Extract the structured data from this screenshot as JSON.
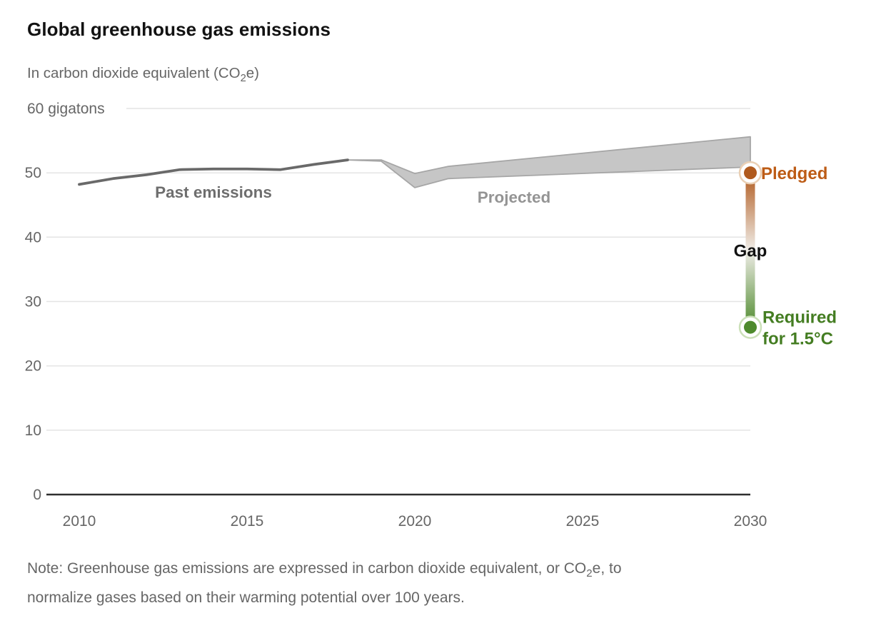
{
  "header": {
    "title": "Global greenhouse gas emissions",
    "subtitle_pre": "In carbon dioxide equivalent (CO",
    "subtitle_sub": "2",
    "subtitle_post": "e)"
  },
  "labels": {
    "past": "Past emissions",
    "projected": "Projected",
    "pledged": "Pledged",
    "gap": "Gap",
    "required_line1": "Required",
    "required_line2": "for 1.5°C"
  },
  "note": {
    "line1_pre": "Note: Greenhouse gas emissions are expressed in carbon dioxide equivalent, or CO",
    "line1_sub": "2",
    "line1_post": "e, to",
    "line2": "normalize gases based on their warming potential over 100 years."
  },
  "colors": {
    "title_text": "#121212",
    "subtitle_text": "#666666",
    "tick_text": "#666666",
    "grid": "#e4e4e4",
    "axis": "#2f2f2f",
    "past_line": "#696969",
    "past_label": "#6e6e6e",
    "band_fill": "#c6c6c6",
    "band_edge": "#a6a6a6",
    "projected_label": "#949494",
    "pledged": "#b05a1e",
    "pledged_text": "#bd5c16",
    "halo_pledged": "#ead0b5",
    "required": "#4e8a2d",
    "required_text": "#447d22",
    "halo_required": "#cbe0b8",
    "gap_text": "#111111",
    "gradient_stops": [
      [
        "0%",
        "#b05a1e"
      ],
      [
        "50%",
        "#f0ede8"
      ],
      [
        "100%",
        "#4e8a2d"
      ]
    ]
  },
  "chart_data": {
    "type": "area",
    "title": "Global greenhouse gas emissions",
    "subtitle": "In carbon dioxide equivalent (CO₂e)",
    "unit_label": "gigatons",
    "y_top_label": "60 gigatons",
    "ylim": [
      0,
      60
    ],
    "y_ticks": [
      0,
      10,
      20,
      30,
      40,
      50,
      60
    ],
    "xlim": [
      2010,
      2030
    ],
    "x_ticks": [
      2010,
      2015,
      2020,
      2025,
      2030
    ],
    "grid": true,
    "series": [
      {
        "name": "Past emissions",
        "type": "line",
        "x": [
          2010,
          2011,
          2012,
          2013,
          2014,
          2015,
          2016,
          2017,
          2018
        ],
        "values": [
          48.2,
          49.1,
          49.7,
          50.5,
          50.6,
          50.6,
          50.5,
          51.3,
          52.0
        ]
      },
      {
        "name": "Projected",
        "type": "band",
        "x": [
          2018,
          2019,
          2020,
          2021,
          2030
        ],
        "upper": [
          52.0,
          52.0,
          49.9,
          51.0,
          55.6
        ],
        "lower": [
          52.0,
          51.8,
          47.7,
          49.1,
          50.9
        ]
      },
      {
        "name": "Pledged",
        "type": "point",
        "x": 2030,
        "value": 50
      },
      {
        "name": "Required for 1.5°C",
        "type": "point",
        "x": 2030,
        "value": 26
      }
    ],
    "annotations": [
      {
        "text": "Past emissions",
        "near_x": 2014,
        "near_y": 47
      },
      {
        "text": "Projected",
        "near_x": 2023,
        "near_y": 46.5
      },
      {
        "text": "Gap",
        "near_x": 2030,
        "near_y": 38
      },
      {
        "text": "Pledged",
        "near_x": 2030,
        "near_y": 50
      },
      {
        "text": "Required for 1.5°C",
        "near_x": 2030,
        "near_y": 26
      }
    ]
  }
}
